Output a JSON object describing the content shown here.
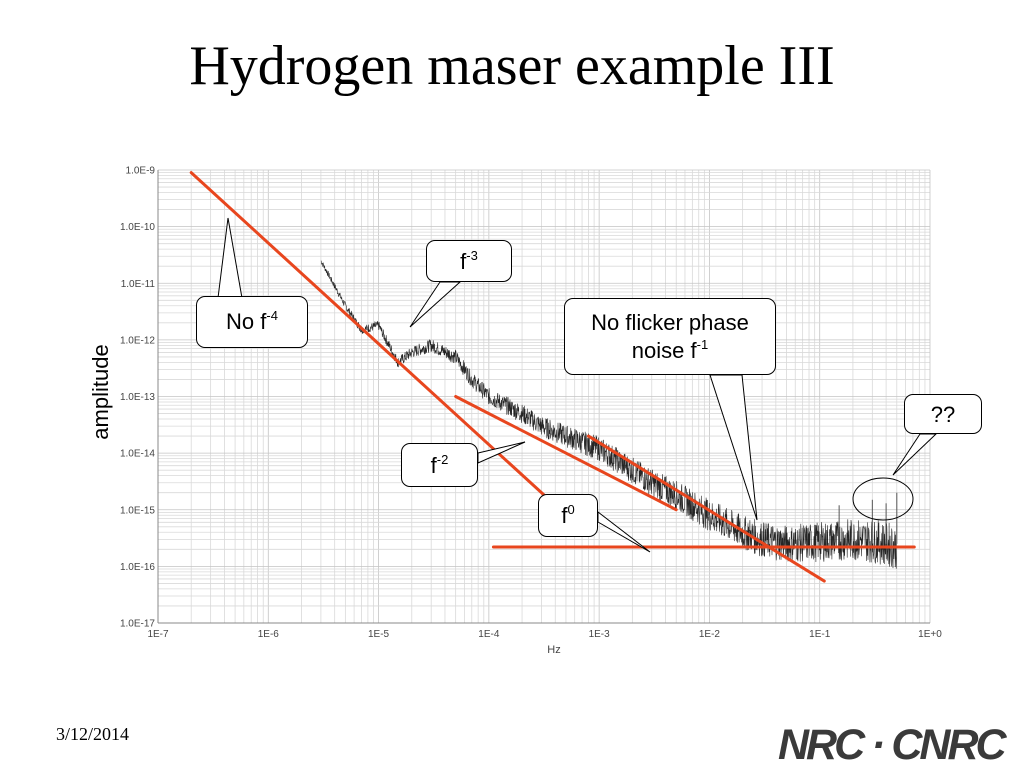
{
  "slide": {
    "title": "Hydrogen maser example III",
    "date": "3/12/2014",
    "logo": "NRC · CNRC"
  },
  "callouts": {
    "no_f4": {
      "base": "No f",
      "exp": "-4"
    },
    "f3": {
      "base": "f",
      "exp": "-3"
    },
    "no_flicker_line1": "No flicker phase",
    "no_flicker_line2": {
      "base": "noise f",
      "exp": "-1"
    },
    "qq": "??",
    "f2": {
      "base": "f",
      "exp": "-2"
    },
    "f0": {
      "base": "f",
      "exp": "0"
    }
  },
  "colors": {
    "fit_line": "#e8461e",
    "data": "#000000",
    "grid": "#d9d9d9",
    "axis_text": "#444444"
  },
  "chart_data": {
    "type": "line",
    "xscale": "log",
    "yscale": "log",
    "xlim": [
      1e-07,
      1
    ],
    "ylim": [
      1e-17,
      1e-09
    ],
    "xlabel": "Hz",
    "ylabel": "amplitude",
    "grid": true,
    "xticks": [
      "1E-7",
      "1E-6",
      "1E-5",
      "1E-4",
      "1E-3",
      "1E-2",
      "1E-1",
      "1E+0"
    ],
    "yticks": [
      "1.0E-9",
      "1.0E-10",
      "1.0E-11",
      "1.0E-12",
      "1.0E-13",
      "1.0E-14",
      "1.0E-15",
      "1.0E-16",
      "1.0E-17"
    ],
    "spectrum": {
      "x": [
        3e-06,
        5e-06,
        7e-06,
        1e-05,
        1.5e-05,
        2e-05,
        3e-05,
        5e-05,
        7e-05,
        0.0001,
        0.0002,
        0.0003,
        0.0005,
        0.001,
        0.002,
        0.003,
        0.005,
        0.01,
        0.02,
        0.03,
        0.05,
        0.1,
        0.2,
        0.3,
        0.4,
        0.5
      ],
      "y": [
        2.5e-11,
        4e-12,
        1.5e-12,
        1.8e-12,
        4e-13,
        6e-13,
        8e-13,
        5e-13,
        2e-13,
        1e-13,
        5e-14,
        3e-14,
        2e-14,
        1.2e-14,
        5e-15,
        3e-15,
        1.8e-15,
        8e-16,
        4e-16,
        3e-16,
        2.5e-16,
        2.7e-16,
        3e-16,
        2.8e-16,
        2.5e-16,
        2.2e-16
      ]
    },
    "spurs": [
      {
        "x": 0.15,
        "y_top": 1.2e-15
      },
      {
        "x": 0.3,
        "y_top": 1.5e-15
      },
      {
        "x": 0.4,
        "y_top": 1.3e-15
      },
      {
        "x": 0.5,
        "y_top": 2e-15
      }
    ],
    "fit_lines": [
      {
        "slope": "-3",
        "x": [
          2e-07,
          0.0004
        ],
        "y": [
          9e-10,
          1.2e-15
        ]
      },
      {
        "slope": "-2",
        "x": [
          5e-05,
          0.005
        ],
        "y": [
          1e-13,
          1e-15
        ]
      },
      {
        "slope": "0",
        "x": [
          0.00011,
          0.72
        ],
        "y": [
          2.2e-16,
          2.2e-16
        ]
      },
      {
        "slope": "-1",
        "x": [
          0.0008,
          0.11
        ],
        "y": [
          2e-14,
          5.5e-17
        ]
      }
    ]
  }
}
